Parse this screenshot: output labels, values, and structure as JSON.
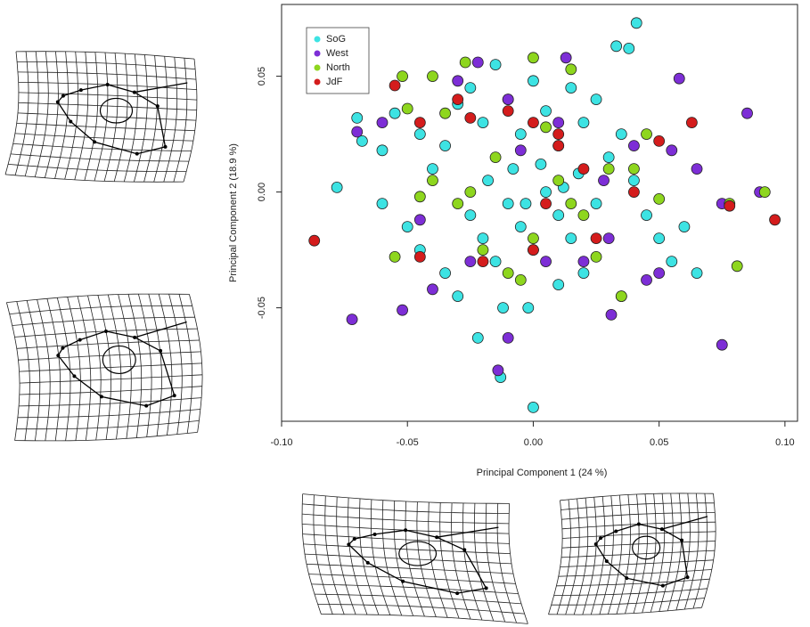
{
  "chart_data": {
    "type": "scatter",
    "x_label": "Principal Component 1 (24 %)",
    "y_label": "Principal Component 2 (18.9 %)",
    "xlim": [
      -0.1,
      0.105
    ],
    "ylim": [
      -0.099,
      0.081
    ],
    "xticks": [
      {
        "value": -0.1,
        "label": "-0.10"
      },
      -0.05,
      {
        "value": 0,
        "label": "0.00"
      },
      0.05,
      {
        "value": 0.1,
        "label": "0.10"
      }
    ],
    "yticks": [
      -0.05,
      {
        "value": 0,
        "label": "0.00"
      },
      0.05
    ],
    "legend": "top-left",
    "series": [
      {
        "name": "SoG",
        "color": "#3de3e3",
        "x": [
          0.041,
          0.038,
          0.033,
          -0.07,
          -0.068,
          -0.078,
          -0.06,
          -0.055,
          -0.045,
          -0.04,
          -0.035,
          -0.03,
          -0.025,
          -0.02,
          -0.015,
          -0.01,
          -0.005,
          0.0,
          0.005,
          0.01,
          0.015,
          0.02,
          0.025,
          0.03,
          0.035,
          0.04,
          0.045,
          0.05,
          0.055,
          0.06,
          0.065,
          -0.025,
          -0.02,
          -0.015,
          -0.01,
          -0.005,
          0.0,
          0.005,
          0.01,
          0.015,
          -0.03,
          -0.035,
          -0.045,
          -0.05,
          -0.06,
          -0.022,
          -0.012,
          -0.002,
          0.0,
          -0.013,
          0.01,
          0.02,
          0.035,
          -0.008,
          0.003,
          0.012,
          -0.018,
          0.025,
          0.018,
          -0.003
        ],
        "values": [
          0.073,
          0.062,
          0.063,
          0.032,
          0.022,
          0.002,
          0.018,
          0.034,
          0.025,
          0.01,
          0.02,
          0.038,
          0.045,
          0.03,
          0.055,
          0.04,
          0.025,
          0.048,
          0.035,
          0.02,
          0.045,
          0.03,
          0.04,
          0.015,
          0.025,
          0.005,
          -0.01,
          -0.02,
          -0.03,
          -0.015,
          -0.035,
          -0.01,
          -0.02,
          -0.03,
          -0.005,
          -0.015,
          -0.025,
          0.0,
          -0.01,
          -0.02,
          -0.045,
          -0.035,
          -0.025,
          -0.015,
          -0.005,
          -0.063,
          -0.05,
          -0.05,
          -0.093,
          -0.08,
          -0.04,
          -0.035,
          -0.045,
          0.01,
          0.012,
          0.002,
          0.005,
          -0.005,
          0.008,
          -0.005
        ]
      },
      {
        "name": "West",
        "color": "#7d2ed6",
        "x": [
          0.085,
          0.058,
          0.075,
          -0.072,
          -0.052,
          -0.014,
          -0.01,
          0.031,
          0.045,
          0.05,
          0.09,
          0.075,
          0.065,
          0.055,
          -0.07,
          -0.03,
          -0.022,
          -0.01,
          0.01,
          0.02,
          0.03,
          -0.04,
          -0.045,
          0.005,
          -0.005,
          0.04,
          0.013,
          -0.025,
          -0.06,
          0.028
        ],
        "values": [
          0.034,
          0.049,
          -0.066,
          -0.055,
          -0.051,
          -0.077,
          -0.063,
          -0.053,
          -0.038,
          -0.035,
          0.0,
          -0.005,
          0.01,
          0.018,
          0.026,
          0.048,
          0.056,
          0.04,
          0.03,
          -0.03,
          -0.02,
          -0.042,
          -0.012,
          -0.03,
          0.018,
          0.02,
          0.058,
          -0.03,
          0.03,
          0.005
        ]
      },
      {
        "name": "North",
        "color": "#8ed61e",
        "x": [
          0.092,
          0.081,
          0.078,
          -0.055,
          -0.05,
          -0.052,
          -0.04,
          -0.035,
          -0.027,
          0.0,
          0.015,
          0.045,
          0.035,
          0.05,
          0.04,
          -0.02,
          -0.01,
          0.0,
          0.01,
          0.02,
          -0.03,
          -0.045,
          0.03,
          -0.015,
          0.005,
          -0.025,
          0.025,
          -0.005,
          -0.04,
          0.015
        ],
        "values": [
          0.0,
          -0.032,
          -0.005,
          -0.028,
          0.036,
          0.05,
          0.05,
          0.034,
          0.056,
          0.058,
          0.053,
          0.025,
          -0.045,
          -0.003,
          0.01,
          -0.025,
          -0.035,
          -0.02,
          0.005,
          -0.01,
          -0.005,
          -0.002,
          0.01,
          0.015,
          0.028,
          0.0,
          -0.028,
          -0.038,
          0.005,
          -0.005
        ]
      },
      {
        "name": "JdF",
        "color": "#d41c1c",
        "x": [
          -0.087,
          0.096,
          0.078,
          0.063,
          0.05,
          -0.055,
          -0.045,
          -0.025,
          -0.01,
          0.0,
          0.01,
          0.02,
          0.025,
          -0.045,
          -0.02,
          0.0,
          0.01,
          -0.03,
          0.04,
          0.005
        ],
        "values": [
          -0.021,
          -0.012,
          -0.006,
          0.03,
          0.022,
          0.046,
          0.03,
          0.032,
          0.035,
          0.03,
          0.025,
          0.01,
          -0.02,
          -0.028,
          -0.03,
          -0.025,
          0.02,
          0.04,
          0.0,
          -0.005
        ]
      }
    ]
  }
}
